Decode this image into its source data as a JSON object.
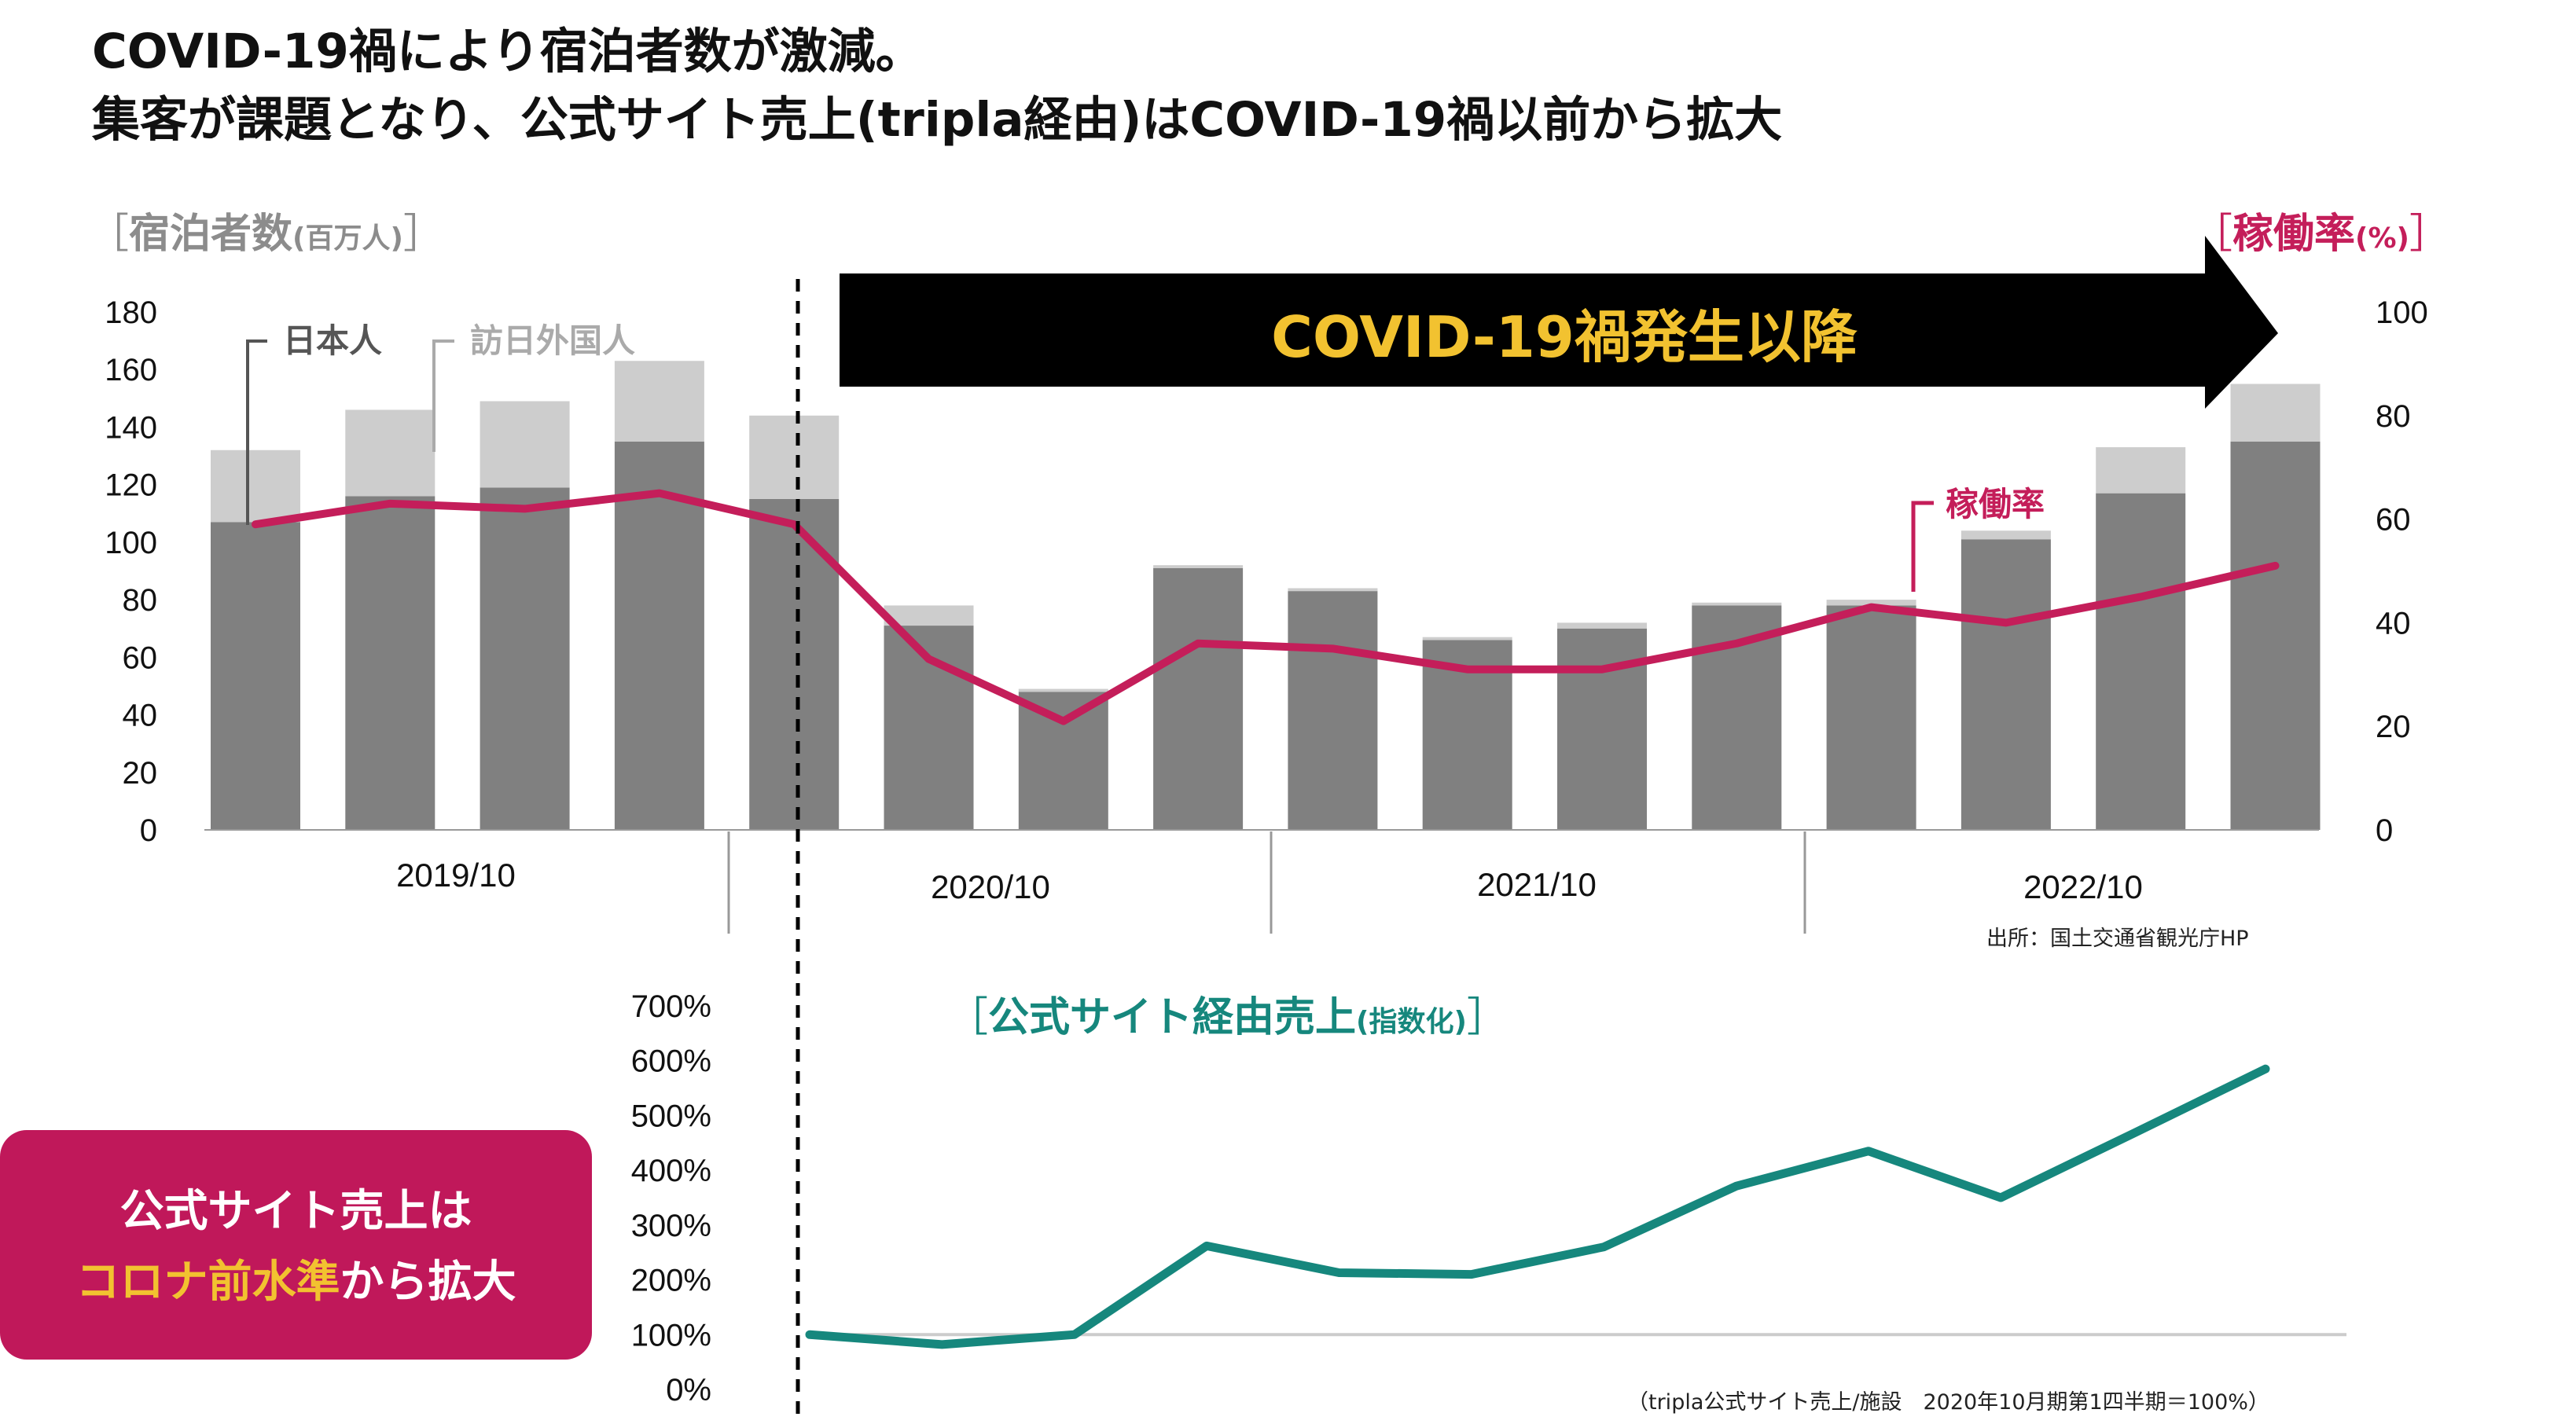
{
  "headline": {
    "line1": "COVID-19禍により宿泊者数が激減。",
    "line2": "集客が課題となり、公式サイト売上(tripla経由)はCOVID-19禍以前から拡大"
  },
  "colors": {
    "domestic": "#808080",
    "foreign": "#CDCDCD",
    "occupancy": "#C41E5A",
    "official_sales": "#16877D",
    "banner_bg": "#000000",
    "banner_text": "#F2C230",
    "callout_bg": "#C0185A",
    "callout_accent": "#F2C230",
    "baseline": "#CCCCCC"
  },
  "banner": {
    "text": "COVID-19禍発生以降"
  },
  "callout": {
    "line1": "公式サイト売上は",
    "line2_accent": "コロナ前水準",
    "line2_rest": "から拡大"
  },
  "sources": {
    "top": "出所：国土交通省観光庁HP",
    "bottom": "（tripla公式サイト売上/施設　2020年10月期第1四半期＝100%）"
  },
  "chart_data": [
    {
      "type": "bar",
      "stacked": true,
      "title": "",
      "ylabel_main": "宿泊者数",
      "ylabel_unit": "(百万人)",
      "y2label_main": "稼働率",
      "y2label_unit": "(%)",
      "ylim": [
        0,
        180
      ],
      "yticks": [
        "180",
        "160",
        "140",
        "120",
        "100",
        "80",
        "60",
        "40",
        "20",
        "0"
      ],
      "y2lim": [
        0,
        100
      ],
      "y2ticks": [
        "100",
        "80",
        "60",
        "40",
        "20",
        "0"
      ],
      "x_group_labels": [
        "2019/10",
        "2020/10",
        "2021/10",
        "2022/10"
      ],
      "legend": [
        "日本人",
        "訪日外国人"
      ],
      "line_label": "稼働率",
      "series": [
        {
          "name": "日本人",
          "values": [
            107,
            116,
            119,
            135,
            115,
            71,
            48,
            91,
            83,
            66,
            70,
            78,
            78,
            101,
            117,
            135
          ]
        },
        {
          "name": "訪日外国人",
          "values": [
            25,
            30,
            30,
            28,
            29,
            7,
            1,
            1,
            1,
            1,
            2,
            1,
            2,
            3,
            16,
            20
          ]
        },
        {
          "name": "稼働率",
          "axis": "right",
          "values": [
            59,
            63,
            62,
            65,
            59,
            33,
            21,
            36,
            35,
            31,
            31,
            36,
            43,
            40,
            45,
            51
          ]
        }
      ]
    },
    {
      "type": "line",
      "title_main": "公式サイト経由売上",
      "title_unit": "(指数化)",
      "ylim": [
        0,
        700
      ],
      "yticks": [
        "700%",
        "600%",
        "500%",
        "400%",
        "300%",
        "200%",
        "100%",
        "0%"
      ],
      "series": [
        {
          "name": "公式サイト経由売上",
          "values": [
            100,
            82,
            100,
            262,
            213,
            210,
            260,
            371,
            435,
            350,
            467,
            585
          ]
        }
      ]
    }
  ]
}
